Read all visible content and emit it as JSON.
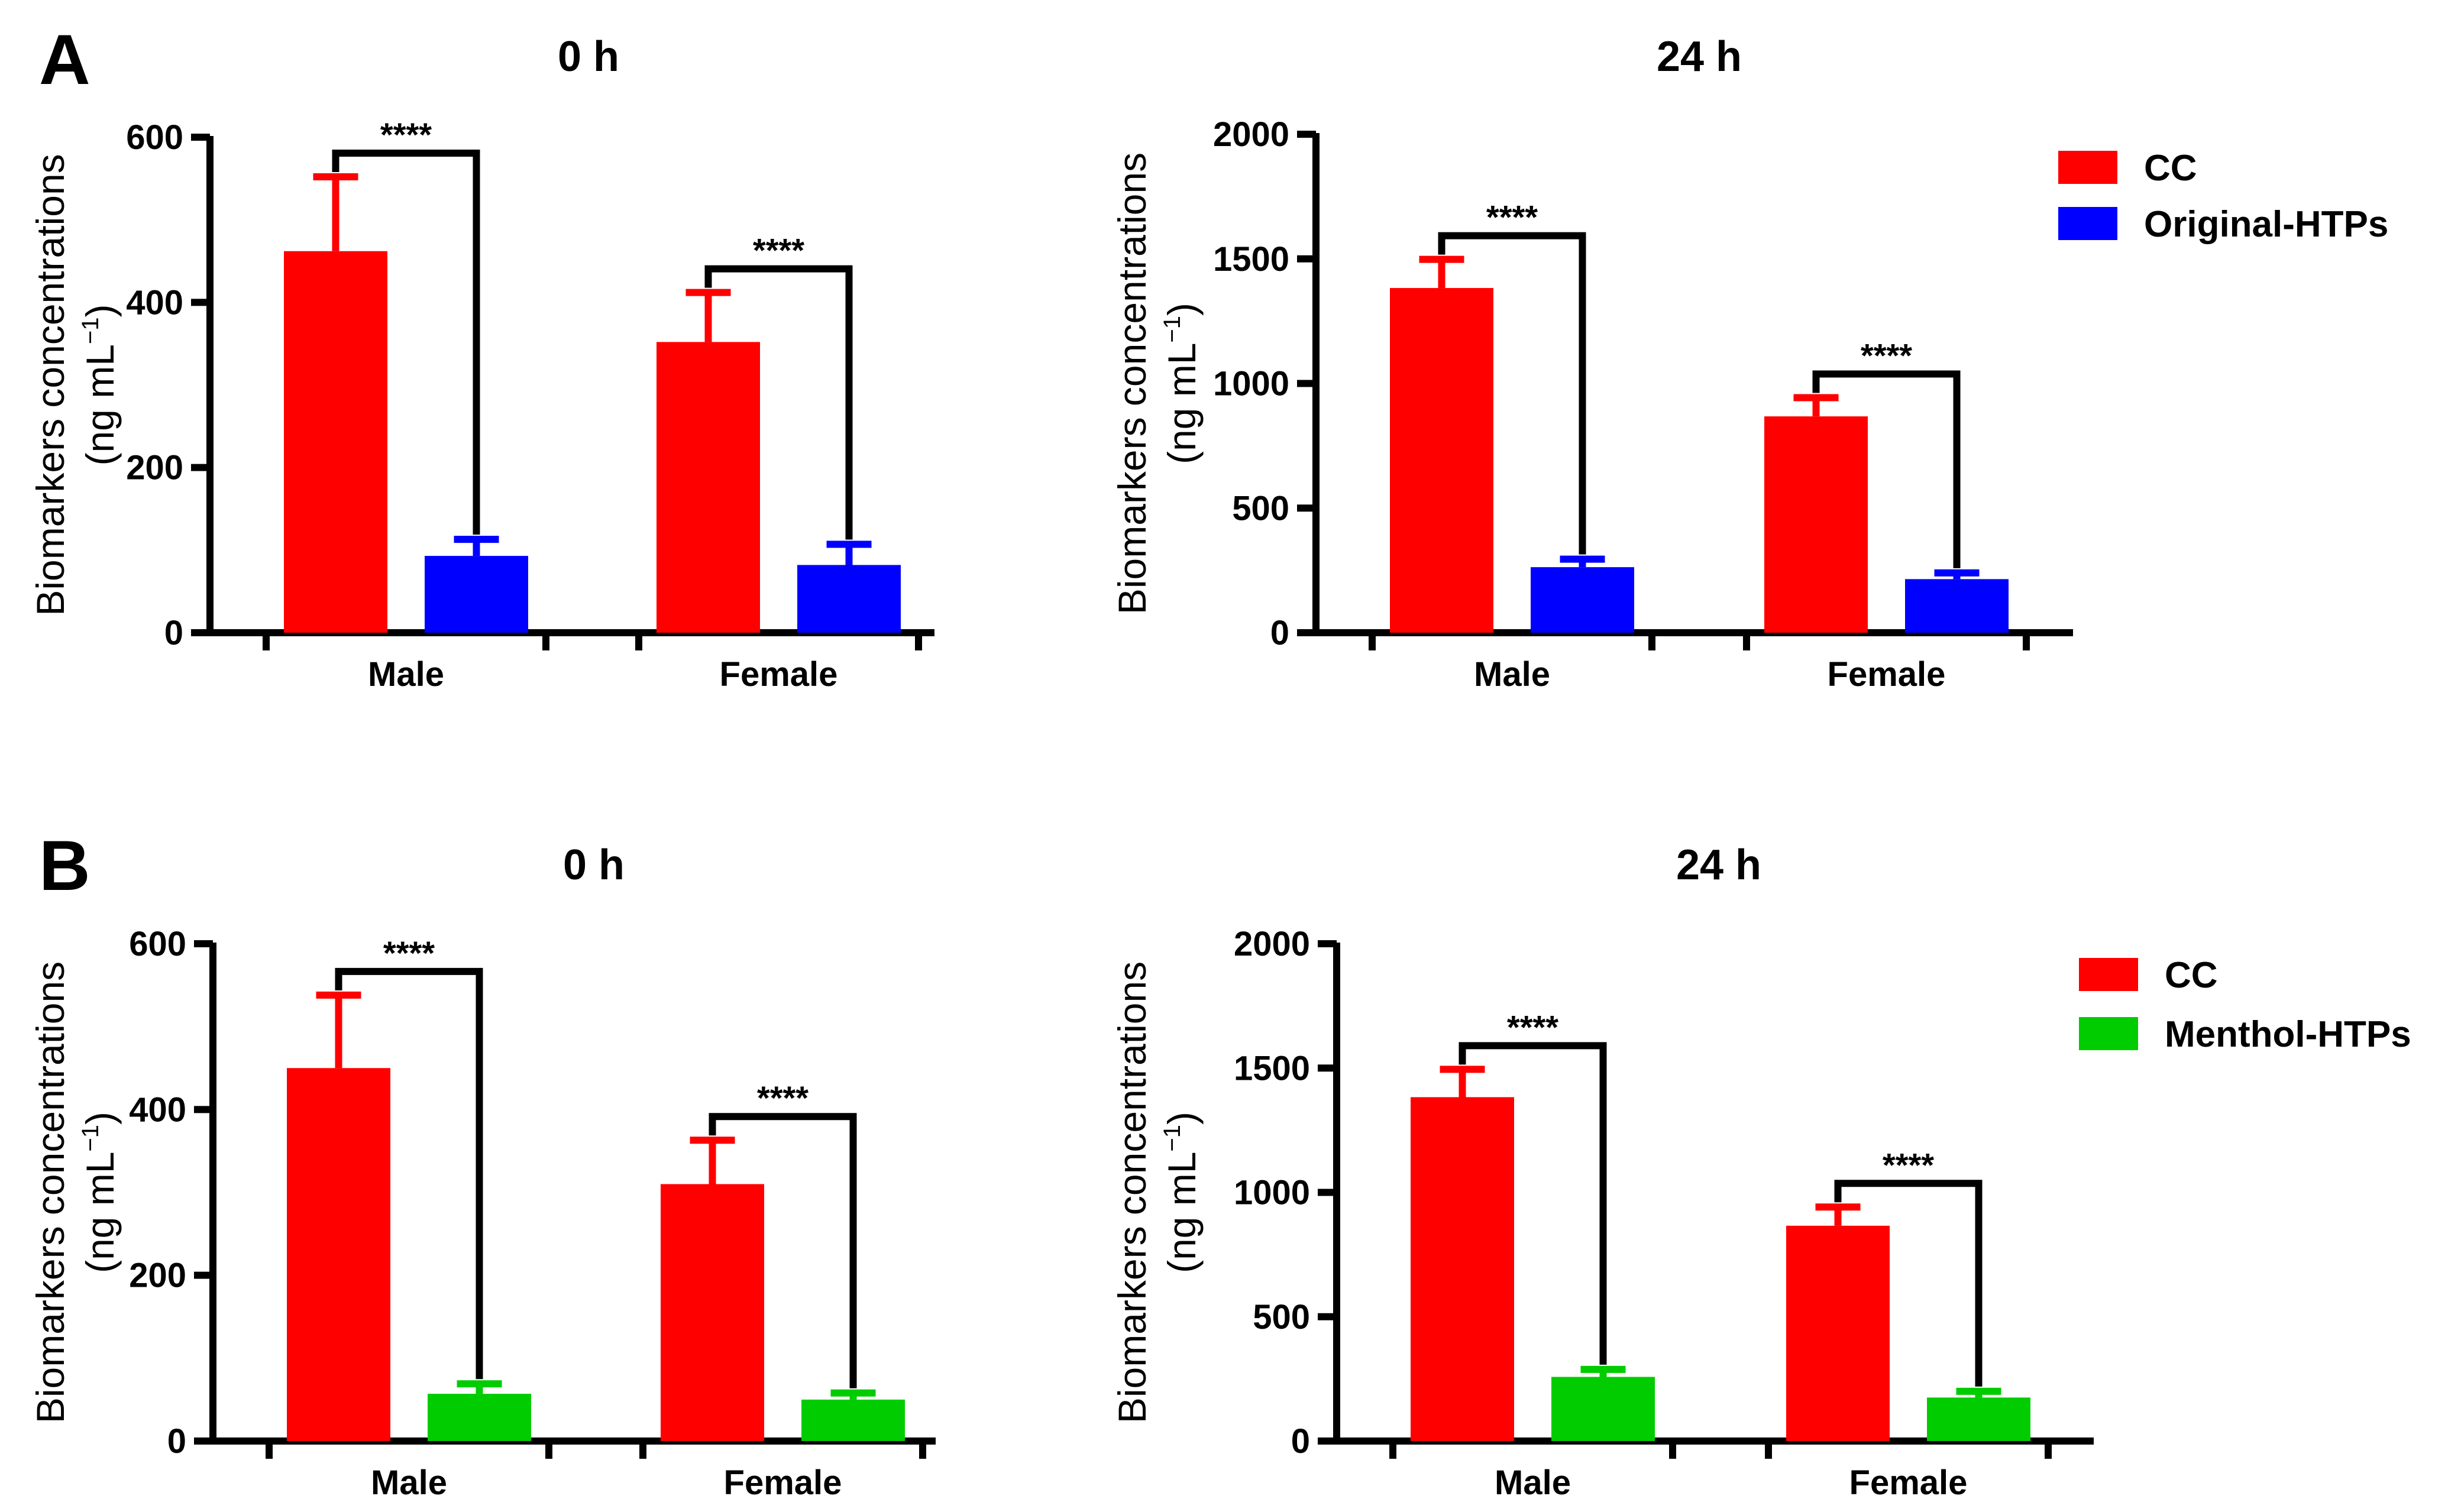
{
  "panels": [
    {
      "label": "A",
      "legend": [
        {
          "name": "CC",
          "color": "#FF0000"
        },
        {
          "name": "Original-HTPs",
          "color": "#0000FF"
        }
      ]
    },
    {
      "label": "B",
      "legend": [
        {
          "name": "CC",
          "color": "#FF0000"
        },
        {
          "name": "Menthol-HTPs",
          "color": "#00CC00"
        }
      ]
    }
  ],
  "chart_data": [
    {
      "type": "bar",
      "panel": "A",
      "title": "0 h",
      "ylabel_main": "Biomarkers concentrations",
      "ylabel_unit": "(ng mL",
      "ylabel_sup": "−1",
      "ylabel_close": ")",
      "ylim": [
        0,
        600
      ],
      "yticks": [
        "0",
        "200",
        "400",
        "600"
      ],
      "categories": [
        "Male",
        "Female"
      ],
      "series": [
        {
          "name": "CC",
          "color": "#FF0000",
          "values": [
            462,
            352
          ],
          "errors": [
            90,
            60
          ]
        },
        {
          "name": "Original-HTPs",
          "color": "#0000FF",
          "values": [
            93,
            82
          ],
          "errors": [
            20,
            25
          ]
        }
      ],
      "significance": [
        "****",
        "****"
      ]
    },
    {
      "type": "bar",
      "panel": "A",
      "title": "24 h",
      "ylabel_main": "Biomarkers concentrations",
      "ylabel_unit": "(ng mL",
      "ylabel_sup": "−1",
      "ylabel_close": ")",
      "ylim": [
        0,
        2000
      ],
      "yticks": [
        "0",
        "500",
        "1000",
        "1500",
        "2000"
      ],
      "categories": [
        "Male",
        "Female"
      ],
      "series": [
        {
          "name": "CC",
          "color": "#FF0000",
          "values": [
            1383,
            868
          ],
          "errors": [
            115,
            75
          ]
        },
        {
          "name": "Original-HTPs",
          "color": "#0000FF",
          "values": [
            263,
            215
          ],
          "errors": [
            32,
            25
          ]
        }
      ],
      "significance": [
        "****",
        "****"
      ]
    },
    {
      "type": "bar",
      "panel": "B",
      "title": "0 h",
      "ylabel_main": "Biomarkers concentrations",
      "ylabel_unit": "(ng mL",
      "ylabel_sup": "−1",
      "ylabel_close": ")",
      "ylim": [
        0,
        600
      ],
      "yticks": [
        "0",
        "200",
        "400",
        "600"
      ],
      "categories": [
        "Male",
        "Female"
      ],
      "series": [
        {
          "name": "CC",
          "color": "#FF0000",
          "values": [
            450,
            310
          ],
          "errors": [
            88,
            53
          ]
        },
        {
          "name": "Menthol-HTPs",
          "color": "#00CC00",
          "values": [
            57,
            50
          ],
          "errors": [
            12,
            8
          ]
        }
      ],
      "significance": [
        "****",
        "****"
      ]
    },
    {
      "type": "bar",
      "panel": "B",
      "title": "24 h",
      "ylabel_main": "Biomarkers concentrations",
      "ylabel_unit": "(ng mL",
      "ylabel_sup": "−1",
      "ylabel_close": ")",
      "ylim": [
        0,
        2000
      ],
      "yticks": [
        "0",
        "500",
        "1000",
        "1500",
        "2000"
      ],
      "categories": [
        "Male",
        "Female"
      ],
      "series": [
        {
          "name": "CC",
          "color": "#FF0000",
          "values": [
            1383,
            866
          ],
          "errors": [
            112,
            75
          ]
        },
        {
          "name": "Menthol-HTPs",
          "color": "#00CC00",
          "values": [
            258,
            175
          ],
          "errors": [
            30,
            25
          ]
        }
      ],
      "significance": [
        "****",
        "****"
      ]
    }
  ]
}
